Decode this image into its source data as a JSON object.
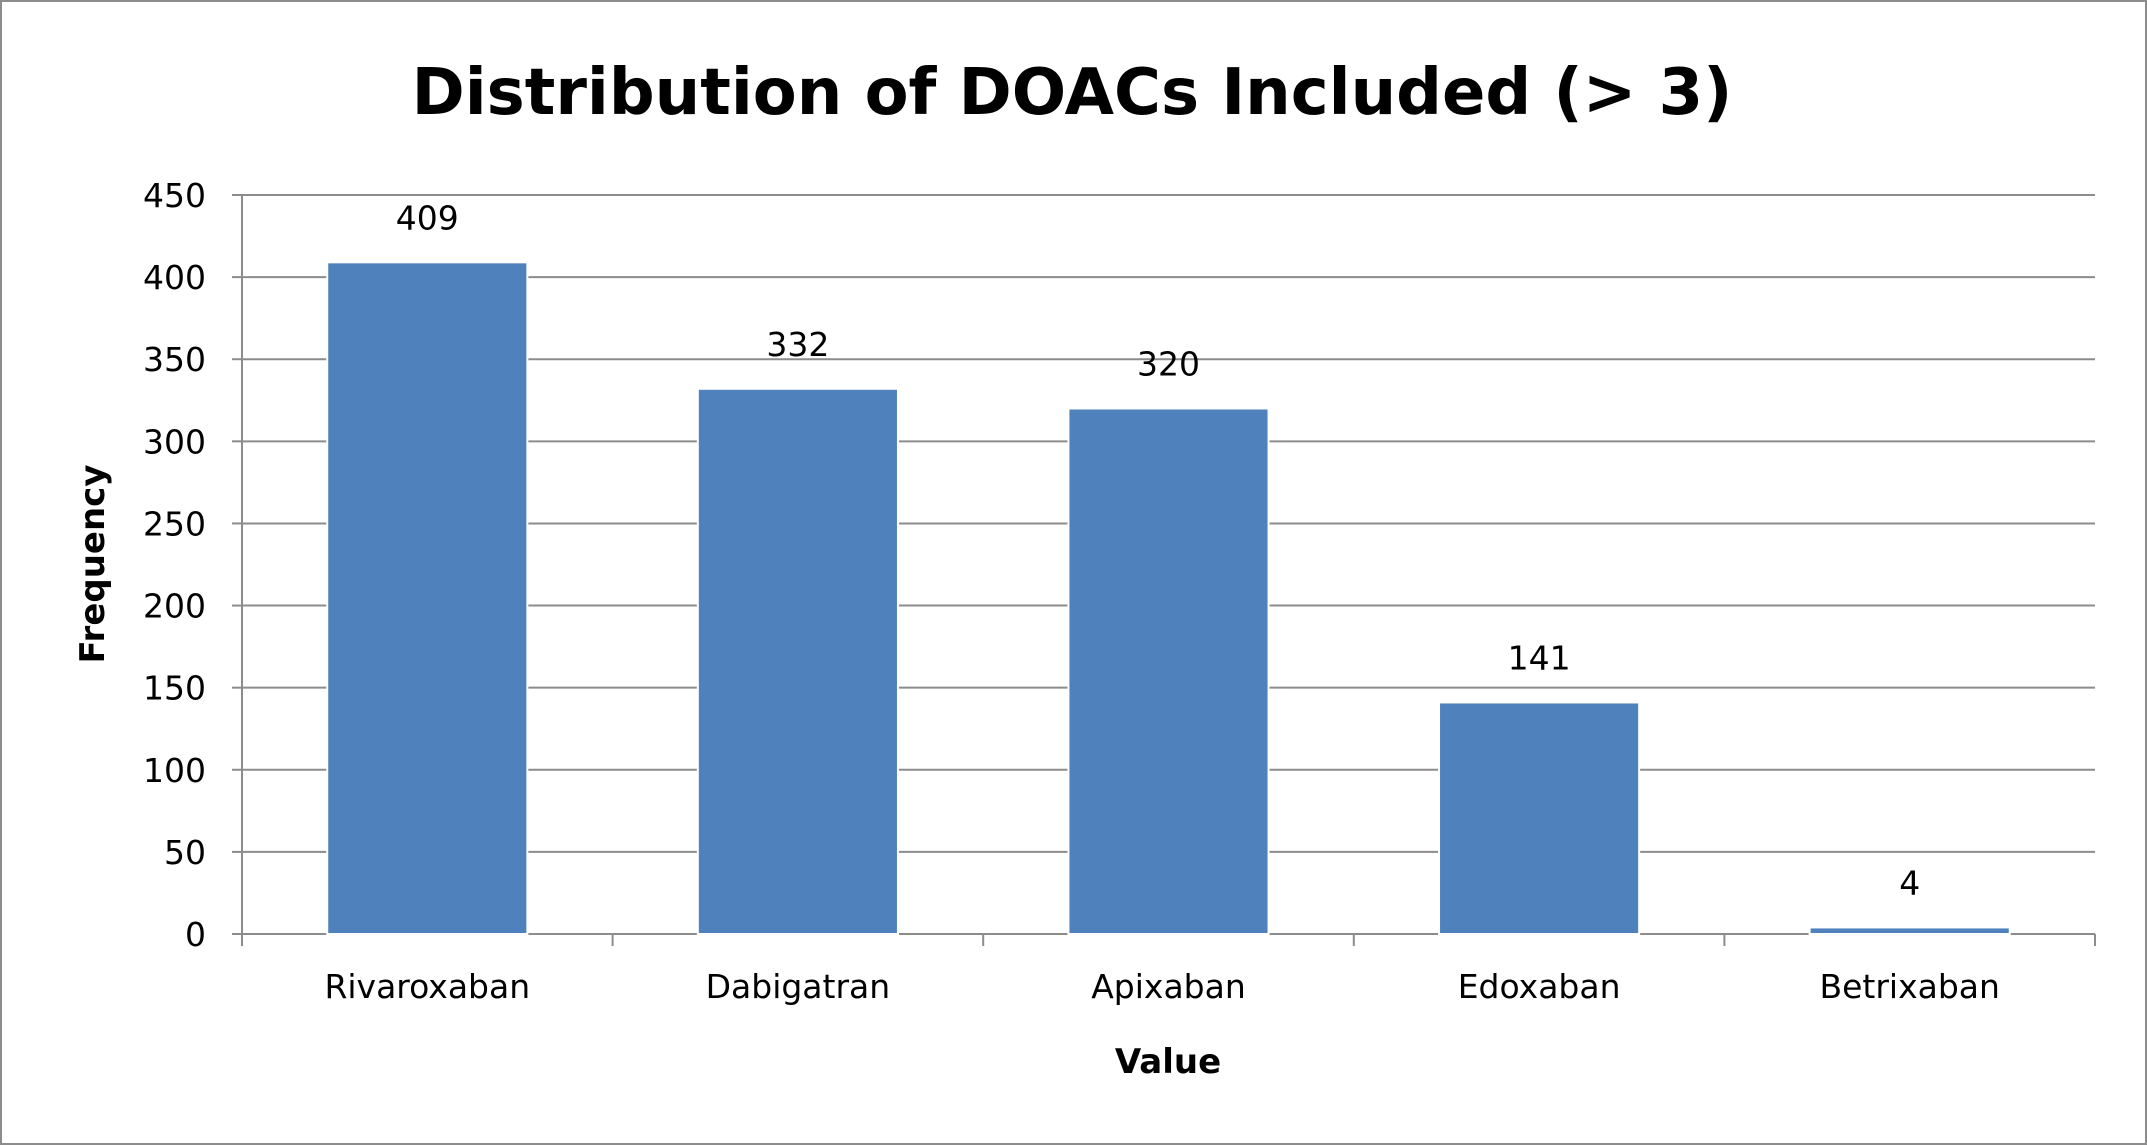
{
  "chart_data": {
    "type": "bar",
    "title": "Distribution of DOACs Included (> 3)",
    "xlabel": "Value",
    "ylabel": "Frequency",
    "categories": [
      "Rivaroxaban",
      "Dabigatran",
      "Apixaban",
      "Edoxaban",
      "Betrixaban"
    ],
    "values": [
      409,
      332,
      320,
      141,
      4
    ],
    "data_labels": [
      "409",
      "332",
      "320",
      "141",
      "4"
    ],
    "ylim": [
      0,
      450
    ],
    "yticks": [
      0,
      50,
      100,
      150,
      200,
      250,
      300,
      350,
      400,
      450
    ],
    "ytick_labels": [
      "0",
      "50",
      "100",
      "150",
      "200",
      "250",
      "300",
      "350",
      "400",
      "450"
    ],
    "grid": true,
    "legend": "none",
    "colors": {
      "bar": "#4f81bd",
      "bar_edge": "#ffffff",
      "grid": "#8c8c8c",
      "axis": "#8c8c8c",
      "frame": "#8c8c8c"
    }
  }
}
